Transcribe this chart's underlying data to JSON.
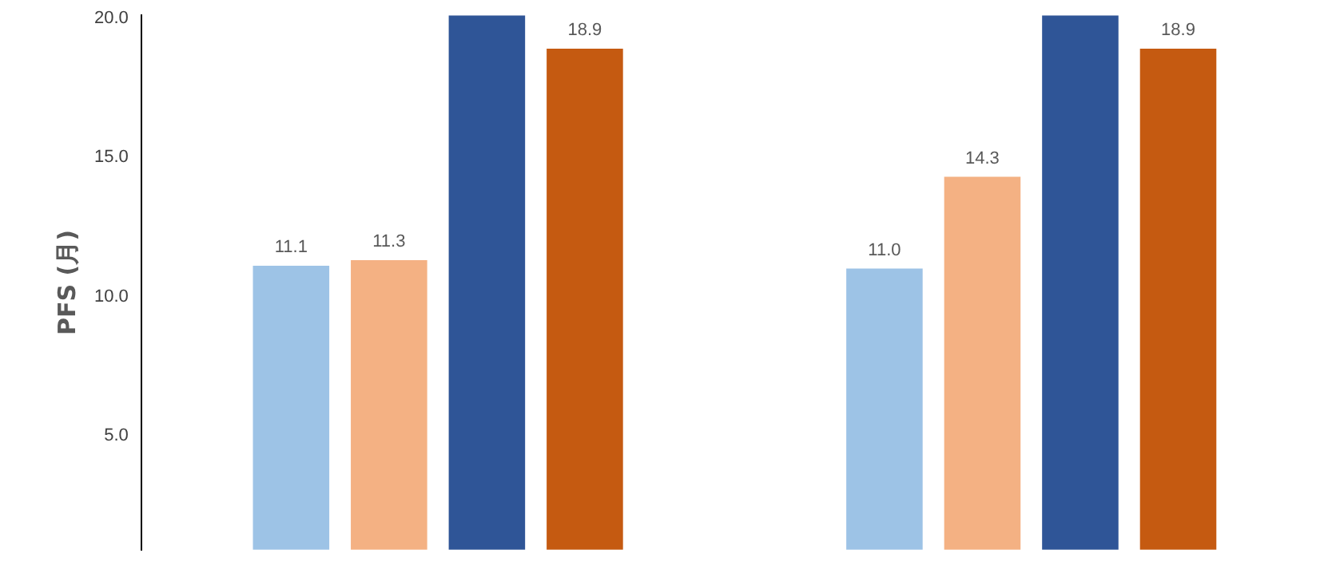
{
  "chart_data": {
    "type": "bar",
    "ylabel": "PFS (月)",
    "categories": [
      null,
      null
    ],
    "series": [
      {
        "color": "#9dc3e6",
        "values": [
          11.1,
          11.0
        ],
        "value_labels": [
          "11.1",
          "11.0"
        ]
      },
      {
        "color": "#f4b183",
        "values": [
          11.3,
          14.3
        ],
        "value_labels": [
          "11.3",
          "14.3"
        ]
      },
      {
        "color": "#2f5597",
        "values": [
          20.1,
          20.1
        ],
        "value_labels": [
          null,
          null
        ]
      },
      {
        "color": "#c55a11",
        "values": [
          18.9,
          18.9
        ],
        "value_labels": [
          "18.9",
          "18.9"
        ]
      }
    ],
    "ylim": [
      0.9,
      20.1
    ],
    "yticks": [
      {
        "value": 5,
        "label": "5.0"
      },
      {
        "value": 10,
        "label": "10.0"
      },
      {
        "value": 15,
        "label": "15.0"
      },
      {
        "value": 20,
        "label": "20.0"
      }
    ],
    "grid": false,
    "legend": false
  }
}
